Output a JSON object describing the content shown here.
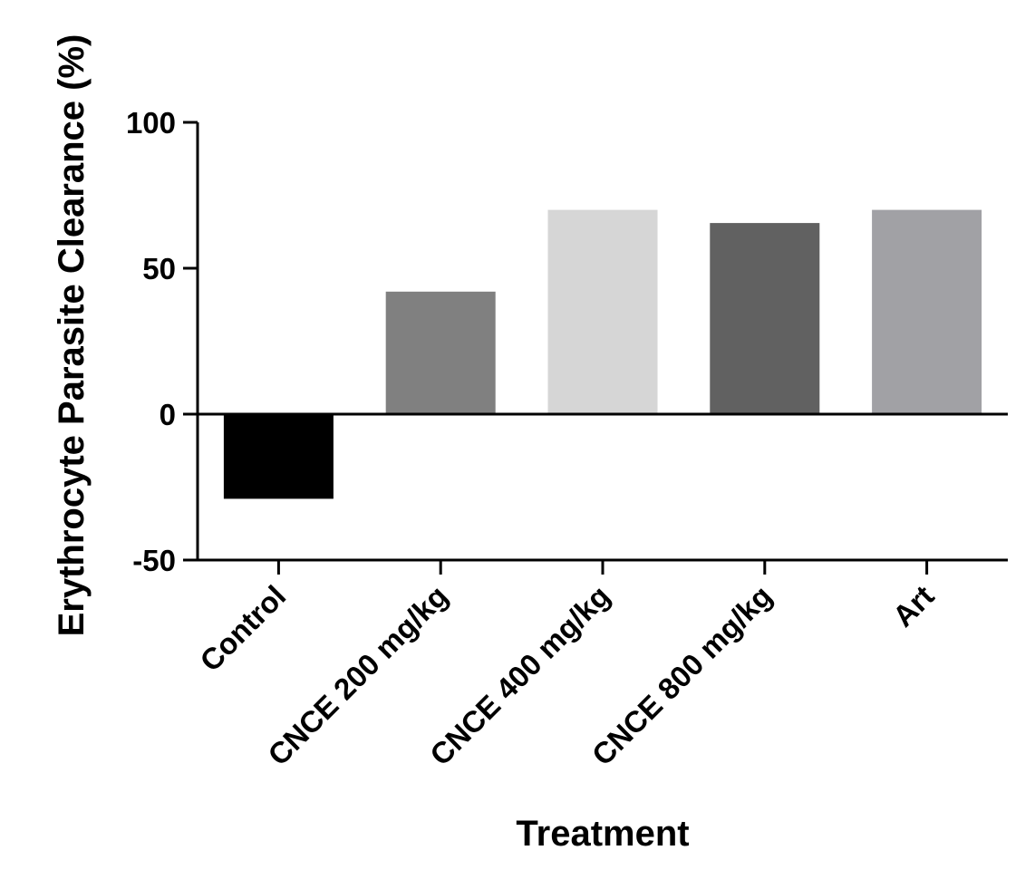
{
  "chart_data": {
    "type": "bar",
    "title": "",
    "xlabel": "Treatment",
    "ylabel": "Erythrocyte Parasite Clearance (%)",
    "categories": [
      "Control",
      "CNCE 200 mg/kg",
      "CNCE 400 mg/kg",
      "CNCE 800 mg/kg",
      "Art"
    ],
    "values": [
      -29,
      42,
      70,
      65.5,
      70
    ],
    "colors": [
      "#000000",
      "#808080",
      "#d6d6d6",
      "#616161",
      "#a1a1a5"
    ],
    "ylim": [
      -50,
      100
    ],
    "yticks": [
      {
        "value": 100,
        "label": "100"
      },
      {
        "value": 50,
        "label": "50"
      },
      {
        "value": 0,
        "label": "0"
      },
      {
        "value": -50,
        "label": "-50"
      }
    ],
    "grid": false,
    "legend": "none"
  }
}
